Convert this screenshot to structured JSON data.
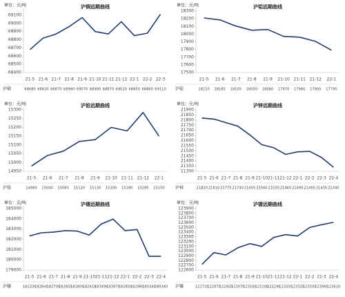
{
  "chart_data": [
    {
      "type": "line",
      "title": "沪铜远期曲线",
      "y_label": "单位：元/吨",
      "categories": [
        "21-5",
        "21-6",
        "21-7",
        "21-8",
        "21-9",
        "21-10",
        "21-11",
        "21-12",
        "22-1",
        "22-2",
        "22-3"
      ],
      "series": [
        {
          "name": "沪铜",
          "color": "#1f3a6e",
          "values": [
            68680,
            68820,
            68870,
            68960,
            69070,
            68900,
            68870,
            69020,
            68850,
            68880,
            69110
          ]
        }
      ],
      "ylim": [
        68400,
        69150
      ],
      "yticks": [
        68400,
        68500,
        68600,
        68700,
        68800,
        68900,
        69000,
        69100
      ]
    },
    {
      "type": "line",
      "title": "沪铝远期曲线",
      "y_label": "单位：元/吨",
      "categories": [
        "21-5",
        "21-6",
        "21-7",
        "21-8",
        "21-9",
        "21-10",
        "21-11",
        "21-12",
        "22-1"
      ],
      "series": [
        {
          "name": "沪铝",
          "color": "#1f3a6e",
          "values": [
            18210,
            18185,
            18105,
            18050,
            18060,
            17970,
            17960,
            17905,
            17790
          ]
        }
      ],
      "ylim": [
        17500,
        18300
      ],
      "yticks": [
        17500,
        17600,
        17700,
        17800,
        17900,
        18000,
        18100,
        18200,
        18300
      ]
    },
    {
      "type": "line",
      "title": "沪铅远期曲线",
      "y_label": "单位：元/吨",
      "categories": [
        "21-5",
        "21-6",
        "21-7",
        "21-8",
        "21-9",
        "21-10",
        "21-11",
        "21-12",
        "22-1"
      ],
      "series": [
        {
          "name": "沪铅",
          "color": "#1f3a6e",
          "values": [
            14980,
            15040,
            15065,
            15120,
            15130,
            15200,
            15180,
            15285,
            15150
          ]
        }
      ],
      "ylim": [
        14950,
        15300
      ],
      "yticks": [
        14950,
        15000,
        15050,
        15100,
        15150,
        15200,
        15250,
        15300
      ]
    },
    {
      "type": "line",
      "title": "沪锌远期曲线",
      "y_label": "单位：元/吨",
      "categories": [
        "21-5",
        "21-6",
        "21-7",
        "21-8",
        "21-9",
        "21-10",
        "21-11",
        "21-12",
        "22-1",
        "22-2",
        "22-3",
        "22-4"
      ],
      "series": [
        {
          "name": "沪锌",
          "color": "#1f3a6e",
          "values": [
            21820,
            21810,
            21775,
            21740,
            21655,
            21560,
            21530,
            21465,
            21490,
            21495,
            21435,
            21340
          ]
        }
      ],
      "ylim": [
        21300,
        21900
      ],
      "yticks": [
        21300,
        21350,
        21400,
        21450,
        21500,
        21550,
        21600,
        21650,
        21700,
        21750,
        21800,
        21850,
        21900
      ]
    },
    {
      "type": "line",
      "title": "沪锡远期曲线",
      "y_label": "单位：元/吨",
      "categories": [
        "21-5",
        "21-6",
        "21-7",
        "21-8",
        "21-9",
        "21-10",
        "21-11",
        "21-12",
        "22-1",
        "22-2",
        "22-3",
        "22-4"
      ],
      "series": [
        {
          "name": "沪锡",
          "color": "#1f3a6e",
          "values": [
            182330,
            182640,
            182700,
            182850,
            182800,
            182410,
            183490,
            183970,
            182850,
            182960,
            180340,
            180340
          ]
        }
      ],
      "ylim": [
        179000,
        185000
      ],
      "yticks": [
        179000,
        180000,
        181000,
        182000,
        183000,
        184000,
        185000
      ]
    },
    {
      "type": "line",
      "title": "沪镍远期曲线",
      "y_label": "单位：元/吨",
      "categories": [
        "21-5",
        "21-6",
        "21-7",
        "21-8",
        "21-9",
        "21-10",
        "21-11",
        "21-12",
        "22-1",
        "22-2",
        "22-3",
        "22-4"
      ],
      "series": [
        {
          "name": "沪镍",
          "color": "#1f3a6e",
          "values": [
            122720,
            122970,
            122920,
            123070,
            123160,
            123100,
            123290,
            123350,
            123320,
            123500,
            123560,
            123610
          ]
        }
      ],
      "ylim": [
        122600,
        123900
      ],
      "yticks": [
        122600,
        122700,
        122800,
        122900,
        123000,
        123100,
        123200,
        123300,
        123400,
        123500,
        123600,
        123700,
        123800,
        123900
      ]
    }
  ]
}
